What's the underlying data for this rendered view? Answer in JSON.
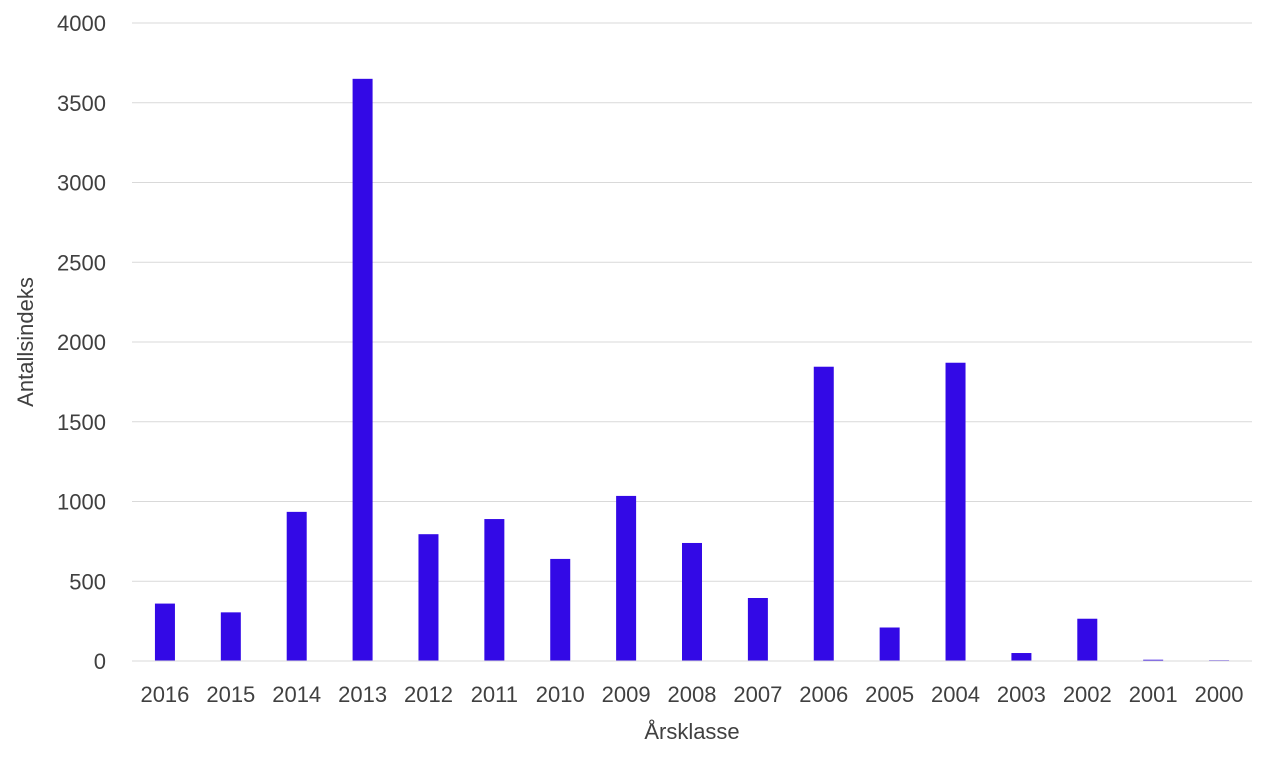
{
  "chart_data": {
    "type": "bar",
    "categories": [
      "2016",
      "2015",
      "2014",
      "2013",
      "2012",
      "2011",
      "2010",
      "2009",
      "2008",
      "2007",
      "2006",
      "2005",
      "2004",
      "2003",
      "2002",
      "2001",
      "2000"
    ],
    "series": [
      {
        "values": [
          360,
          305,
          935,
          3650,
          795,
          890,
          640,
          1035,
          740,
          395,
          1845,
          210,
          1870,
          50,
          265,
          8,
          5
        ],
        "color": "#3309e6"
      }
    ],
    "title": "",
    "xlabel": "Årsklasse",
    "ylabel": "Antallsindeks",
    "ylim": [
      0,
      4000
    ],
    "yticks": [
      0,
      500,
      1000,
      1500,
      2000,
      2500,
      3000,
      3500,
      4000
    ],
    "grid": true,
    "legend": "none"
  }
}
